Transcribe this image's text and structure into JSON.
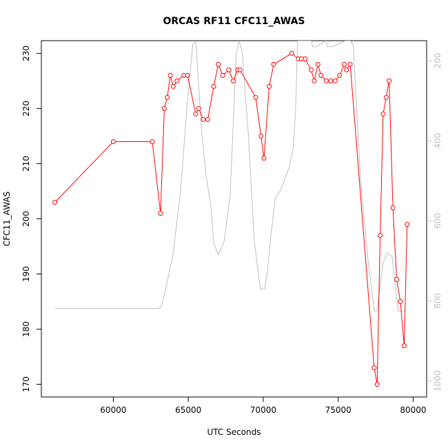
{
  "chart_data": {
    "type": "line",
    "title": "ORCAS RF11 CFC11_AWAS",
    "xlabel": "UTC Seconds",
    "ylabel": "CFC11_AWAS",
    "xlim": [
      55200,
      80900
    ],
    "ylim": [
      167.7,
      232.3
    ],
    "x_ticks": [
      60000,
      65000,
      70000,
      75000,
      80000
    ],
    "y_ticks": [
      170,
      180,
      190,
      200,
      210,
      220,
      230
    ],
    "y2_ticks": [
      200,
      400,
      600,
      800,
      1000
    ],
    "y2lim": [
      1040,
      150
    ],
    "grid": false,
    "series": [
      {
        "role": "primary",
        "color": "#ff0000",
        "marker": "open-circle",
        "x": [
          56100,
          60000,
          62600,
          63150,
          63400,
          63600,
          63800,
          64000,
          64250,
          64700,
          64950,
          65500,
          65700,
          66000,
          66300,
          66700,
          67000,
          67300,
          67700,
          68000,
          68300,
          68450,
          69500,
          69850,
          70050,
          70400,
          70700,
          71900,
          72350,
          72550,
          72800,
          73200,
          73400,
          73650,
          73850,
          74200,
          74500,
          74800,
          75100,
          75400,
          75550,
          75800,
          77400,
          77600,
          77800,
          78000,
          78200,
          78400,
          78650,
          78900,
          79150,
          79400,
          79600
        ],
        "y": [
          203,
          214,
          214,
          201,
          220,
          222,
          226,
          224,
          225,
          226,
          226,
          219,
          220,
          218,
          218,
          224,
          228,
          226,
          227,
          225,
          227,
          227,
          222,
          215,
          211,
          224,
          228,
          230,
          229,
          229,
          229,
          227,
          225,
          228,
          226,
          225,
          225,
          225,
          226,
          228,
          227,
          228,
          173,
          170,
          197,
          219,
          222,
          225,
          202,
          189,
          185,
          177,
          199
        ]
      },
      {
        "role": "secondary",
        "color": "#bebebe",
        "x": [
          56100,
          63000,
          63200,
          63500,
          64000,
          64500,
          64900,
          65300,
          65500,
          65900,
          66200,
          66500,
          66700,
          67000,
          67400,
          67800,
          68200,
          68400,
          68600,
          69000,
          69400,
          69800,
          70100,
          70300,
          70500,
          70800,
          71200,
          71700,
          72000,
          72150,
          72300,
          72500,
          73200,
          73300,
          73500,
          74200,
          74300,
          74600,
          75500,
          75800,
          76000,
          76500,
          77000,
          77400,
          77600,
          77800,
          78000,
          78300,
          78600,
          79000,
          79500
        ],
        "y": [
          819,
          819,
          814,
          770,
          680,
          520,
          320,
          160,
          150,
          380,
          490,
          560,
          655,
          685,
          650,
          530,
          180,
          150,
          180,
          380,
          650,
          770,
          770,
          720,
          640,
          545,
          520,
          470,
          420,
          330,
          150,
          150,
          150,
          165,
          165,
          150,
          165,
          165,
          150,
          150,
          160,
          500,
          700,
          825,
          825,
          760,
          705,
          680,
          690,
          825,
          825
        ]
      }
    ]
  }
}
